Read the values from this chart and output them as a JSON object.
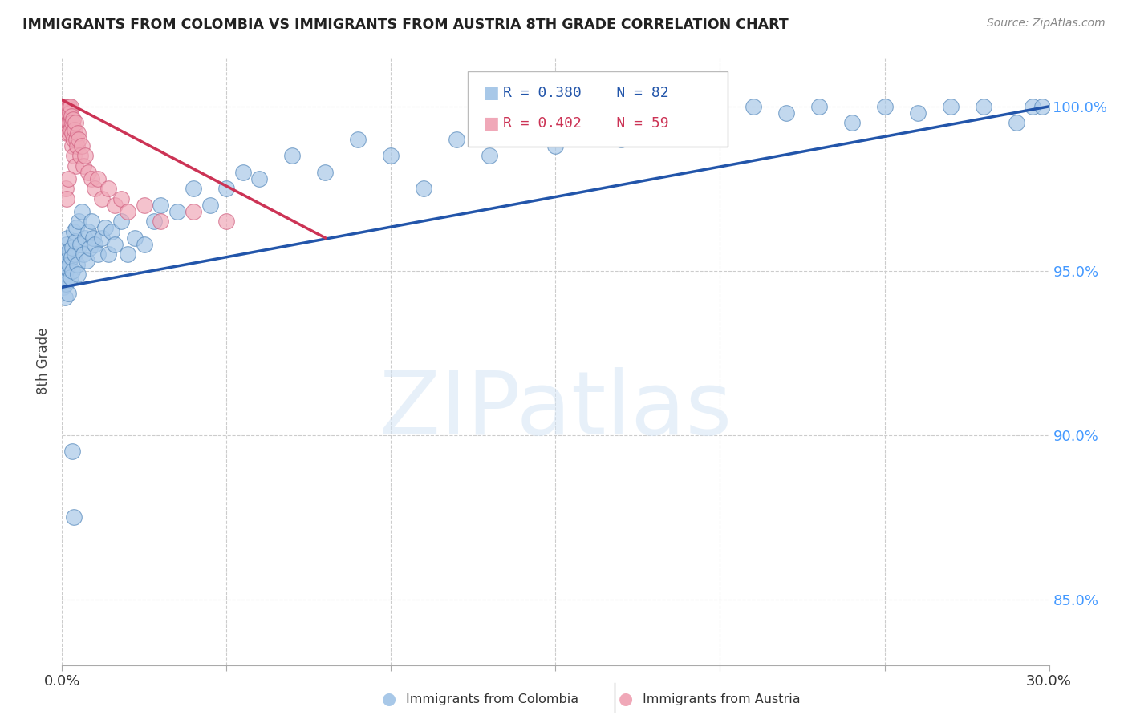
{
  "title": "IMMIGRANTS FROM COLOMBIA VS IMMIGRANTS FROM AUSTRIA 8TH GRADE CORRELATION CHART",
  "source": "Source: ZipAtlas.com",
  "ylabel": "8th Grade",
  "xlim": [
    0.0,
    30.0
  ],
  "ylim": [
    83.0,
    101.5
  ],
  "ytick_labels": [
    "85.0%",
    "90.0%",
    "95.0%",
    "100.0%"
  ],
  "ytick_values": [
    85.0,
    90.0,
    95.0,
    100.0
  ],
  "colombia_color": "#a8c8e8",
  "colombia_edge": "#5588bb",
  "austria_color": "#f0a8b8",
  "austria_edge": "#d06080",
  "trendline_colombia": "#2255aa",
  "trendline_austria": "#cc3355",
  "legend_R_colombia": "R = 0.380",
  "legend_N_colombia": "N = 82",
  "legend_R_austria": "R = 0.402",
  "legend_N_austria": "N = 59",
  "colombia_x": [
    0.05,
    0.07,
    0.08,
    0.09,
    0.1,
    0.1,
    0.11,
    0.12,
    0.13,
    0.14,
    0.15,
    0.16,
    0.17,
    0.18,
    0.2,
    0.22,
    0.25,
    0.28,
    0.3,
    0.32,
    0.35,
    0.38,
    0.4,
    0.42,
    0.45,
    0.48,
    0.5,
    0.55,
    0.6,
    0.65,
    0.7,
    0.75,
    0.8,
    0.85,
    0.9,
    0.95,
    1.0,
    1.1,
    1.2,
    1.3,
    1.4,
    1.5,
    1.6,
    1.8,
    2.0,
    2.2,
    2.5,
    2.8,
    3.0,
    3.5,
    4.0,
    4.5,
    5.0,
    5.5,
    6.0,
    7.0,
    8.0,
    9.0,
    10.0,
    11.0,
    12.0,
    13.0,
    14.0,
    15.0,
    16.0,
    17.0,
    18.0,
    19.0,
    20.0,
    21.0,
    22.0,
    23.0,
    24.0,
    25.0,
    26.0,
    27.0,
    28.0,
    29.0,
    29.5,
    29.8,
    0.3,
    0.35
  ],
  "colombia_y": [
    94.5,
    94.8,
    95.2,
    94.9,
    95.5,
    94.2,
    95.0,
    94.6,
    95.3,
    94.7,
    95.8,
    95.1,
    96.0,
    94.3,
    95.6,
    95.2,
    94.8,
    95.4,
    95.0,
    95.7,
    96.2,
    95.5,
    95.9,
    96.3,
    95.2,
    94.9,
    96.5,
    95.8,
    96.8,
    95.5,
    96.0,
    95.3,
    96.2,
    95.7,
    96.5,
    96.0,
    95.8,
    95.5,
    96.0,
    96.3,
    95.5,
    96.2,
    95.8,
    96.5,
    95.5,
    96.0,
    95.8,
    96.5,
    97.0,
    96.8,
    97.5,
    97.0,
    97.5,
    98.0,
    97.8,
    98.5,
    98.0,
    99.0,
    98.5,
    97.5,
    99.0,
    98.5,
    99.2,
    98.8,
    99.5,
    99.0,
    99.5,
    100.0,
    99.5,
    100.0,
    99.8,
    100.0,
    99.5,
    100.0,
    99.8,
    100.0,
    100.0,
    99.5,
    100.0,
    100.0,
    89.5,
    87.5
  ],
  "austria_x": [
    0.05,
    0.06,
    0.07,
    0.08,
    0.08,
    0.09,
    0.1,
    0.1,
    0.11,
    0.12,
    0.13,
    0.14,
    0.15,
    0.15,
    0.16,
    0.17,
    0.18,
    0.19,
    0.2,
    0.2,
    0.22,
    0.23,
    0.25,
    0.25,
    0.27,
    0.28,
    0.3,
    0.3,
    0.32,
    0.33,
    0.35,
    0.35,
    0.38,
    0.4,
    0.4,
    0.42,
    0.45,
    0.48,
    0.5,
    0.55,
    0.6,
    0.65,
    0.7,
    0.8,
    0.9,
    1.0,
    1.1,
    1.2,
    1.4,
    1.6,
    1.8,
    2.0,
    2.5,
    3.0,
    4.0,
    5.0,
    0.12,
    0.14,
    0.18
  ],
  "austria_y": [
    100.0,
    99.8,
    100.0,
    99.5,
    100.0,
    99.8,
    100.0,
    99.5,
    100.0,
    99.8,
    100.0,
    99.5,
    100.0,
    99.2,
    99.8,
    100.0,
    99.5,
    99.8,
    100.0,
    99.2,
    99.5,
    99.8,
    99.5,
    100.0,
    99.3,
    99.7,
    99.5,
    98.8,
    99.2,
    99.6,
    99.0,
    98.5,
    99.3,
    99.5,
    98.2,
    99.0,
    98.8,
    99.2,
    99.0,
    98.5,
    98.8,
    98.2,
    98.5,
    98.0,
    97.8,
    97.5,
    97.8,
    97.2,
    97.5,
    97.0,
    97.2,
    96.8,
    97.0,
    96.5,
    96.8,
    96.5,
    97.5,
    97.2,
    97.8
  ],
  "colombia_trend_x": [
    0.0,
    30.0
  ],
  "colombia_trend_y": [
    94.5,
    100.0
  ],
  "austria_trend_x": [
    0.0,
    8.0
  ],
  "austria_trend_y": [
    100.2,
    96.0
  ],
  "background_color": "#ffffff",
  "grid_color": "#cccccc",
  "watermark": "ZIPatlas",
  "watermark_color": "#d5e5f5"
}
